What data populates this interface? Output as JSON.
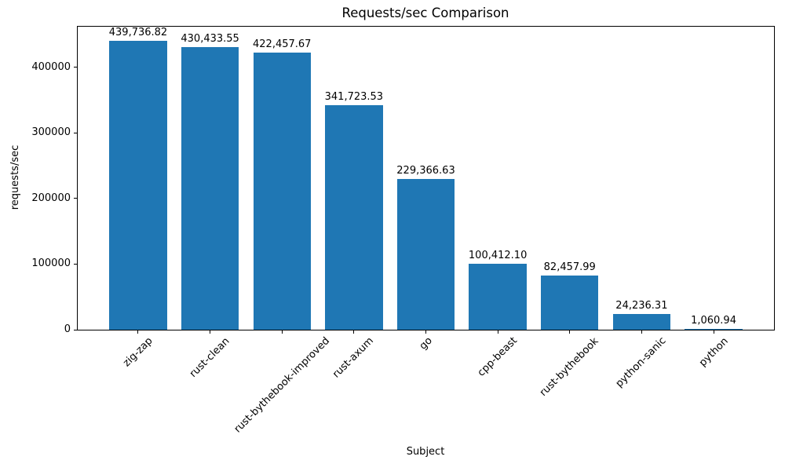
{
  "colors": {
    "bar": "#1f77b4",
    "text": "#000000",
    "background": "#ffffff"
  },
  "chart_data": {
    "type": "bar",
    "title": "Requests/sec Comparison",
    "xlabel": "Subject",
    "ylabel": "requests/sec",
    "categories": [
      "zig-zap",
      "rust-clean",
      "rust-bythebook-improved",
      "rust-axum",
      "go",
      "cpp-beast",
      "rust-bythebook",
      "python-sanic",
      "python"
    ],
    "values": [
      439736.82,
      430433.55,
      422457.67,
      341723.53,
      229366.63,
      100412.1,
      82457.99,
      24236.31,
      1060.94
    ],
    "value_labels": [
      "439,736.82",
      "430,433.55",
      "422,457.67",
      "341,723.53",
      "229,366.63",
      "100,412.10",
      "82,457.99",
      "24,236.31",
      "1,060.94"
    ],
    "yticks": [
      0,
      100000,
      200000,
      300000,
      400000
    ],
    "ytick_labels": [
      "0",
      "100000",
      "200000",
      "300000",
      "400000"
    ],
    "ylim": [
      0,
      461723.66
    ],
    "grid": false,
    "legend": "none",
    "bar_color": "#1f77b4"
  }
}
